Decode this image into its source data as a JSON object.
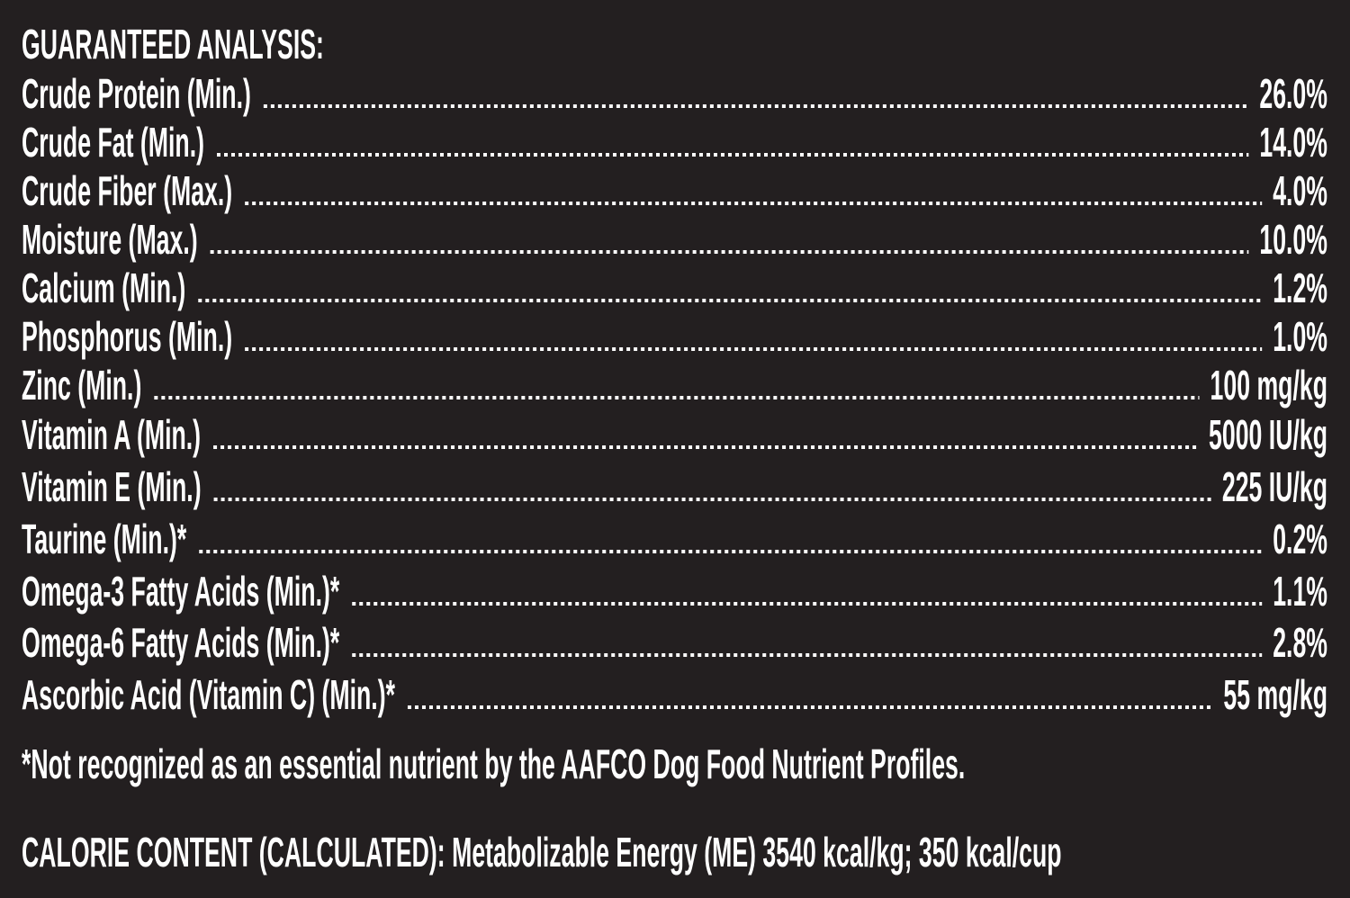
{
  "title": "GUARANTEED ANALYSIS:",
  "rows": [
    {
      "label": "Crude Protein (Min.)",
      "value": "26.0%"
    },
    {
      "label": "Crude Fat (Min.)",
      "value": "14.0%"
    },
    {
      "label": "Crude Fiber (Max.)",
      "value": "4.0%"
    },
    {
      "label": "Moisture (Max.)",
      "value": "10.0%"
    },
    {
      "label": "Calcium (Min.)",
      "value": "1.2%"
    },
    {
      "label": "Phosphorus (Min.)",
      "value": "1.0%"
    },
    {
      "label": "Zinc (Min.)",
      "value": "100 mg/kg"
    },
    {
      "label": "Vitamin A (Min.)",
      "value": "5000 IU/kg"
    },
    {
      "label": "Vitamin E (Min.)",
      "value": "225 IU/kg"
    },
    {
      "label": "Taurine (Min.)*",
      "value": "0.2%"
    },
    {
      "label": "Omega-3 Fatty Acids (Min.)*",
      "value": "1.1%"
    },
    {
      "label": "Omega-6 Fatty Acids (Min.)*",
      "value": "2.8%"
    },
    {
      "label": "Ascorbic Acid (Vitamin C) (Min.)*",
      "value": "55 mg/kg"
    }
  ],
  "footnote": "*Not recognized as an essential nutrient by the AAFCO Dog Food Nutrient Profiles.",
  "calorie": "CALORIE CONTENT (CALCULATED): Metabolizable Energy (ME) 3540 kcal/kg; 350 kcal/cup"
}
